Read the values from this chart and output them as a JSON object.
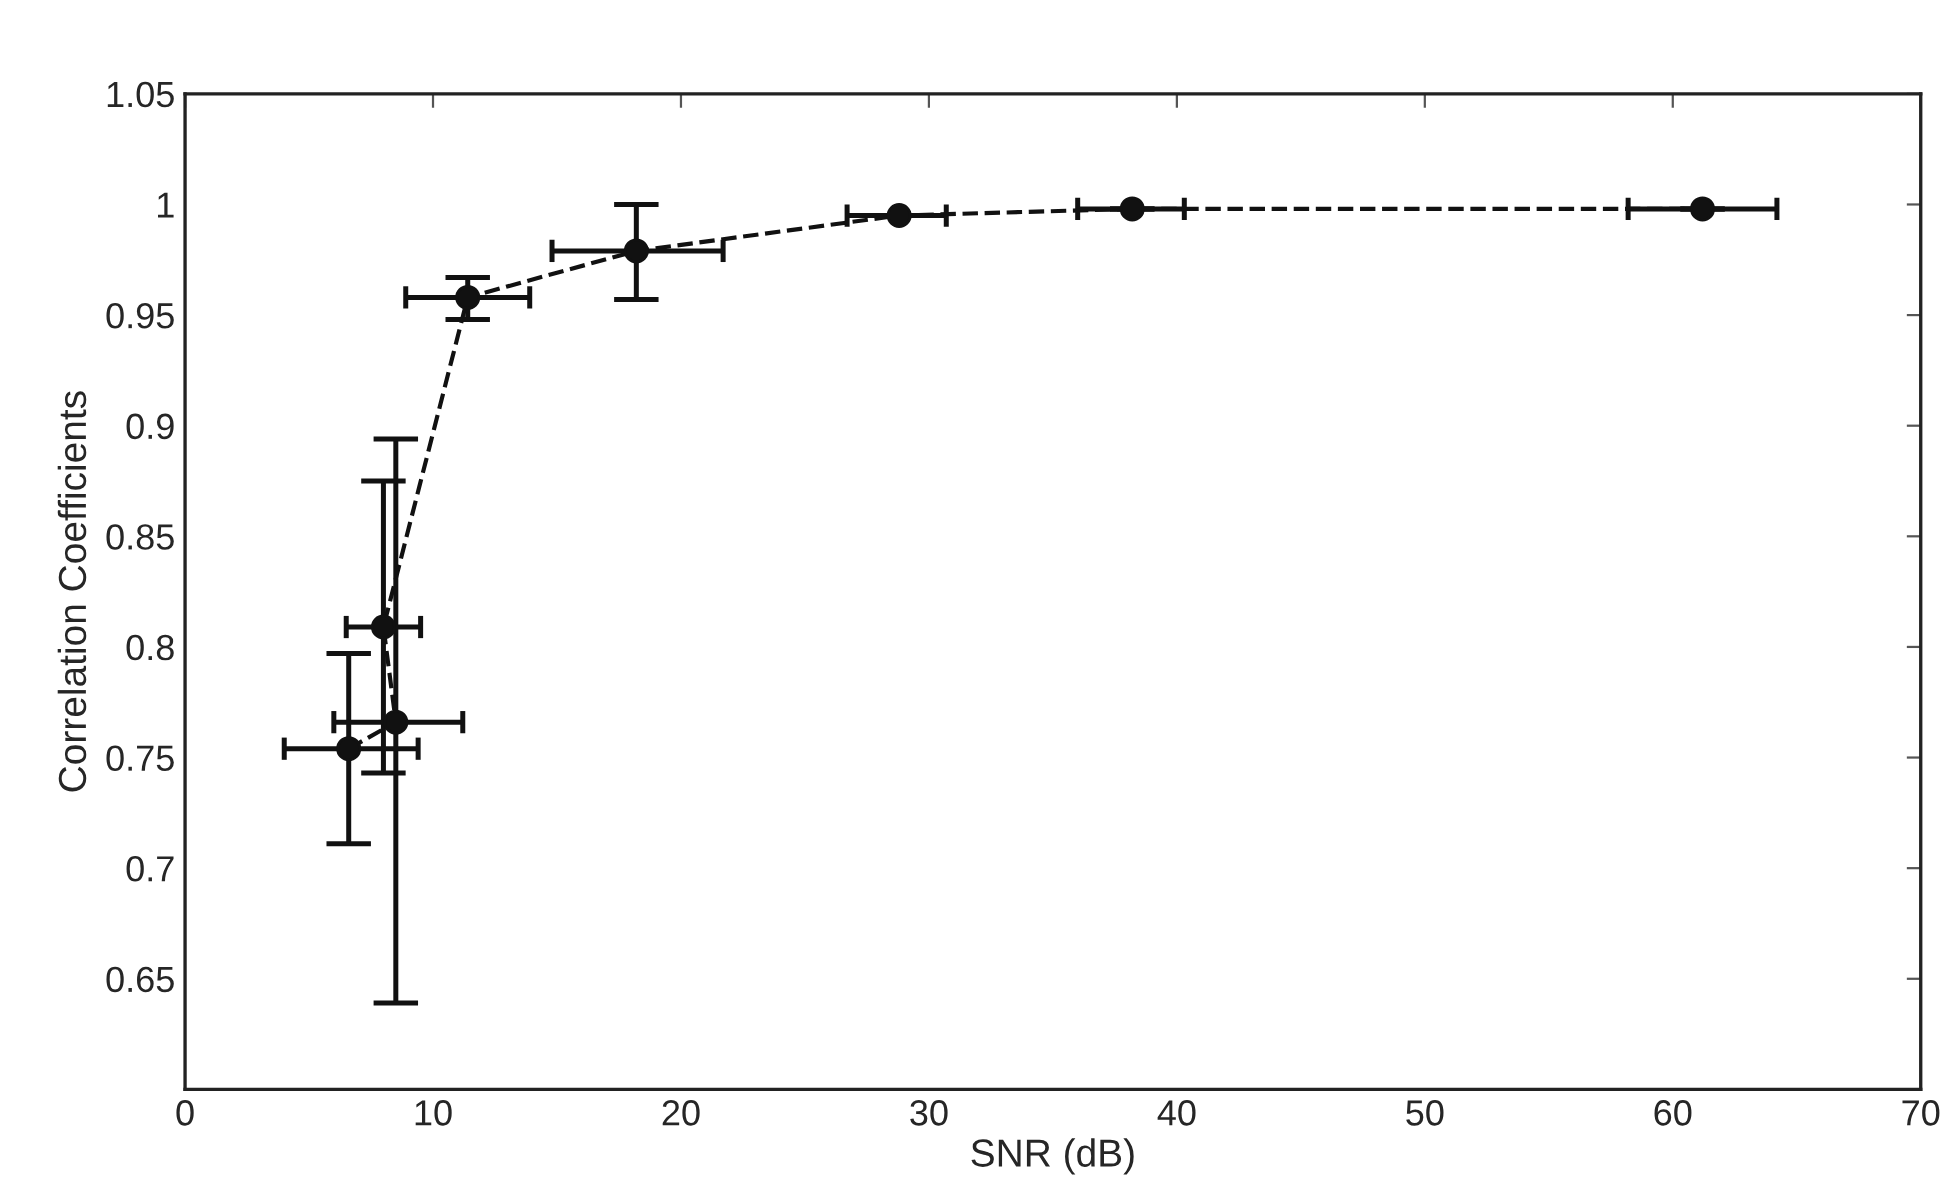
{
  "chart_data": {
    "type": "line",
    "xlabel": "SNR (dB)",
    "ylabel": "Correlation Coefficients",
    "x": [
      6.6,
      8.5,
      8.0,
      11.4,
      18.2,
      28.8,
      38.2,
      61.2
    ],
    "series": [
      {
        "color": "#111111",
        "marker": "circle",
        "line_style": "dashed",
        "values": [
          0.754,
          0.766,
          0.809,
          0.958,
          0.979,
          0.995,
          0.998,
          0.998
        ],
        "errors": [
          [
            0.711,
            0.797
          ],
          [
            0.639,
            0.894
          ],
          [
            0.743,
            0.875
          ],
          [
            0.948,
            0.967
          ],
          [
            0.957,
            1.0
          ],
          null,
          null,
          null
        ],
        "xerrors": [
          [
            4.0,
            9.4
          ],
          [
            6.0,
            11.2
          ],
          [
            6.5,
            9.5
          ],
          [
            8.9,
            13.9
          ],
          [
            14.8,
            21.7
          ],
          [
            26.7,
            30.7
          ],
          [
            36.0,
            40.3
          ],
          [
            58.2,
            64.2
          ]
        ]
      }
    ],
    "xlim": [
      0,
      70
    ],
    "xticks": [
      0,
      10,
      20,
      30,
      40,
      50,
      60,
      70
    ],
    "ylim": [
      0.6,
      1.05
    ],
    "yticks": [
      0.65,
      0.7,
      0.75,
      0.8,
      0.85,
      0.9,
      0.95,
      1,
      1.05
    ],
    "grid": false,
    "legend": false
  }
}
